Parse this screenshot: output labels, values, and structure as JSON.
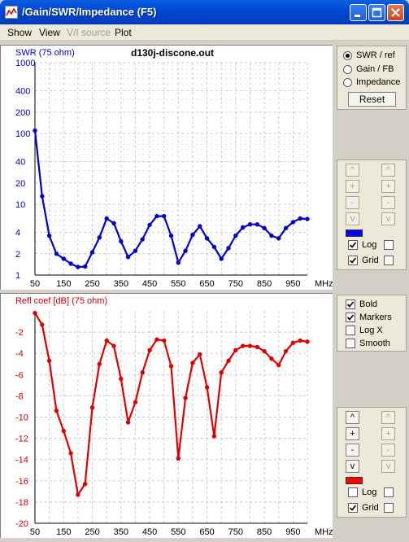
{
  "window": {
    "title": "/Gain/SWR/Impedance  (F5)"
  },
  "menu": [
    {
      "label": "Show",
      "enabled": true
    },
    {
      "label": "View",
      "enabled": true
    },
    {
      "label": "V/I source",
      "enabled": false
    },
    {
      "label": "Plot",
      "enabled": true
    }
  ],
  "top_panel": {
    "series_label": "SWR (75 ohm)",
    "file_label": "d130j-discone.out",
    "radio": [
      {
        "label": "SWR / ref",
        "selected": true
      },
      {
        "label": "Gain / FB",
        "selected": false
      },
      {
        "label": "Impedance",
        "selected": false
      }
    ],
    "reset_label": "Reset",
    "arrow_labels": [
      "^",
      "+",
      "-",
      "v"
    ],
    "swatch_color": "#0000ff",
    "log_label": "Log",
    "grid_label": "Grid",
    "log_checked": true,
    "grid_checked": true
  },
  "bottom_panel": {
    "series_label": "Refl coef [dB] (75 ohm)",
    "options": [
      {
        "label": "Bold",
        "checked": true
      },
      {
        "label": "Markers",
        "checked": true
      },
      {
        "label": "Log X",
        "checked": false
      },
      {
        "label": "Smooth",
        "checked": false
      }
    ],
    "arrow_labels": [
      "^",
      "+",
      "-",
      "v"
    ],
    "swatch_color": "#ff0000",
    "log_label": "Log",
    "grid_label": "Grid",
    "log_checked": false,
    "grid_checked": true
  },
  "chart_data": [
    {
      "type": "line",
      "title": "d130j-discone.out",
      "series": [
        {
          "name": "SWR (75 ohm)",
          "color": "#0000c8",
          "x": [
            50,
            75,
            100,
            125,
            150,
            175,
            200,
            225,
            250,
            275,
            300,
            325,
            350,
            375,
            400,
            425,
            450,
            475,
            500,
            525,
            550,
            575,
            600,
            625,
            650,
            675,
            700,
            725,
            750,
            775,
            800,
            825,
            850,
            875,
            900,
            925,
            950,
            975,
            1000
          ],
          "values": [
            110,
            13,
            3.6,
            2.0,
            1.7,
            1.45,
            1.3,
            1.32,
            2.1,
            3.4,
            6.3,
            5.4,
            3.0,
            1.8,
            2.2,
            3.2,
            5.1,
            6.8,
            6.8,
            3.6,
            1.5,
            2.2,
            3.7,
            4.9,
            3.3,
            2.5,
            1.7,
            2.4,
            3.6,
            4.7,
            5.2,
            5.2,
            4.6,
            3.6,
            3.3,
            4.6,
            5.6,
            6.3,
            6.2
          ]
        }
      ],
      "xlabel": "MHz",
      "xlim": [
        50,
        1000
      ],
      "x_ticks": [
        50,
        150,
        250,
        350,
        450,
        550,
        650,
        750,
        850,
        950
      ],
      "ylim": [
        1,
        1000
      ],
      "y_scale": "log",
      "y_ticks": [
        1,
        2,
        4,
        10,
        20,
        40,
        100,
        200,
        400,
        1000
      ],
      "grid": true
    },
    {
      "type": "line",
      "series": [
        {
          "name": "Refl coef [dB] (75 ohm)",
          "color": "#e00000",
          "x": [
            50,
            75,
            100,
            125,
            150,
            175,
            200,
            225,
            250,
            275,
            300,
            325,
            350,
            375,
            400,
            425,
            450,
            475,
            500,
            525,
            550,
            575,
            600,
            625,
            650,
            675,
            700,
            725,
            750,
            775,
            800,
            825,
            850,
            875,
            900,
            925,
            950,
            975,
            1000
          ],
          "values": [
            -0.2,
            -1.3,
            -4.7,
            -9.4,
            -11.3,
            -13.4,
            -17.3,
            -16.3,
            -9.1,
            -5.0,
            -2.8,
            -3.3,
            -6.4,
            -10.5,
            -8.6,
            -5.8,
            -3.7,
            -2.7,
            -2.8,
            -5.2,
            -13.9,
            -8.2,
            -4.9,
            -4.1,
            -7.2,
            -11.8,
            -5.8,
            -4.7,
            -3.7,
            -3.3,
            -3.3,
            -3.4,
            -3.8,
            -4.5,
            -5.1,
            -3.8,
            -3.0,
            -2.8,
            -2.9
          ]
        }
      ],
      "xlabel": "MHz",
      "xlim": [
        50,
        1000
      ],
      "x_ticks": [
        50,
        150,
        250,
        350,
        450,
        550,
        650,
        750,
        850,
        950
      ],
      "ylim": [
        -20,
        0
      ],
      "y_ticks": [
        -2,
        -4,
        -6,
        -8,
        -10,
        -12,
        -14,
        -16,
        -18,
        -20
      ],
      "grid": true
    }
  ]
}
